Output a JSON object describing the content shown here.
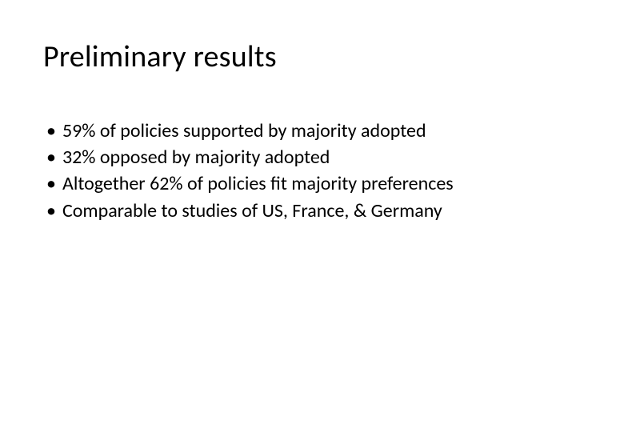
{
  "slide": {
    "title": "Preliminary results",
    "bullets": [
      "59% of policies supported by majority adopted",
      "32% opposed by majority adopted",
      "Altogether 62% of policies fit majority preferences",
      "Comparable to studies of US, France, & Germany"
    ],
    "title_fontsize": 38,
    "bullet_fontsize": 24,
    "background_color": "#ffffff",
    "text_color": "#000000",
    "bullet_marker": "•"
  }
}
